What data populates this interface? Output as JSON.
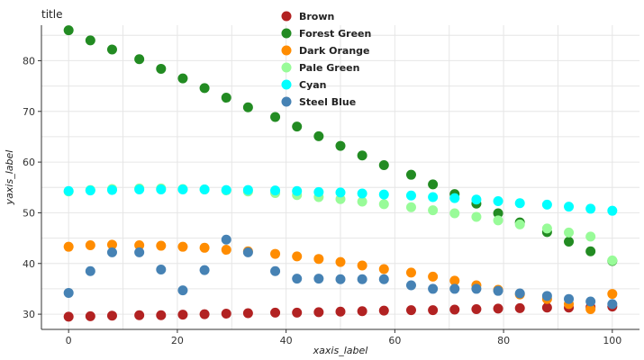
{
  "chart_data": {
    "type": "scatter",
    "title": "title",
    "xlabel": "xaxis_label",
    "ylabel": "yaxis_label",
    "xlim": [
      -5,
      105
    ],
    "ylim": [
      27,
      87
    ],
    "xticks": [
      0,
      20,
      40,
      60,
      80,
      100
    ],
    "yticks": [
      30,
      40,
      50,
      60,
      70,
      80
    ],
    "grid": true,
    "legend_position": "top-center",
    "x": [
      0,
      4,
      8,
      13,
      17,
      21,
      25,
      29,
      33,
      38,
      42,
      46,
      50,
      54,
      58,
      63,
      67,
      71,
      75,
      79,
      83,
      88,
      92,
      96,
      100
    ],
    "series": [
      {
        "name": "Brown",
        "color": "#b22222",
        "values": [
          29.5,
          29.6,
          29.7,
          29.8,
          29.8,
          29.9,
          30.0,
          30.1,
          30.2,
          30.3,
          30.3,
          30.4,
          30.5,
          30.6,
          30.7,
          30.8,
          30.8,
          30.9,
          31.0,
          31.1,
          31.2,
          31.3,
          31.3,
          31.4,
          31.5
        ]
      },
      {
        "name": "Forest Green",
        "color": "#228b22",
        "values": [
          86.0,
          84.0,
          82.2,
          80.3,
          78.4,
          76.5,
          74.6,
          72.7,
          70.8,
          68.9,
          67.0,
          65.1,
          63.2,
          61.3,
          59.4,
          57.5,
          55.6,
          53.7,
          51.8,
          49.9,
          48.1,
          46.2,
          44.3,
          42.4,
          40.5
        ]
      },
      {
        "name": "Dark Orange",
        "color": "#ff8c00",
        "values": [
          43.3,
          43.6,
          43.7,
          43.6,
          43.5,
          43.3,
          43.1,
          42.7,
          42.4,
          41.9,
          41.4,
          40.9,
          40.3,
          39.6,
          38.9,
          38.2,
          37.4,
          36.6,
          35.7,
          34.8,
          33.9,
          33.0,
          32.0,
          31.0,
          34.0
        ]
      },
      {
        "name": "Pale Green",
        "color": "#98fb98",
        "values": [
          54.2,
          54.5,
          54.7,
          54.8,
          54.8,
          54.7,
          54.6,
          54.4,
          54.2,
          53.9,
          53.5,
          53.1,
          52.7,
          52.2,
          51.7,
          51.1,
          50.5,
          49.9,
          49.2,
          48.5,
          47.7,
          46.9,
          46.1,
          45.3,
          40.6
        ]
      },
      {
        "name": "Cyan",
        "color": "#00ffff",
        "values": [
          54.3,
          54.4,
          54.5,
          54.6,
          54.6,
          54.6,
          54.6,
          54.5,
          54.5,
          54.4,
          54.3,
          54.1,
          54.0,
          53.8,
          53.6,
          53.4,
          53.1,
          52.9,
          52.6,
          52.3,
          51.9,
          51.6,
          51.2,
          50.8,
          50.4
        ]
      },
      {
        "name": "Steel Blue",
        "color": "#4682b4",
        "values": [
          34.2,
          38.5,
          42.2,
          42.2,
          38.8,
          34.7,
          38.7,
          44.7,
          42.2,
          38.5,
          37.0,
          37.0,
          36.9,
          36.9,
          36.9,
          35.7,
          35.0,
          35.0,
          35.0,
          34.6,
          34.1,
          33.6,
          33.0,
          32.5,
          32.0
        ]
      }
    ]
  }
}
